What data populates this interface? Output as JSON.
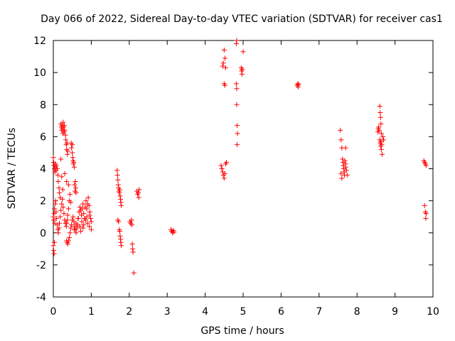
{
  "chart_data": {
    "type": "scatter",
    "title": "Day 066 of 2022, Sidereal Day-to-day VTEC variation (SDTVAR) for receiver cas1",
    "xlabel": "GPS time / hours",
    "ylabel": "SDTVAR / TECUs",
    "xlim": [
      0,
      10
    ],
    "ylim": [
      -4,
      12
    ],
    "xticks": [
      "0",
      "1",
      "2",
      "3",
      "4",
      "5",
      "6",
      "7",
      "8",
      "9",
      "10"
    ],
    "yticks": [
      "-4",
      "-2",
      "0",
      "2",
      "4",
      "6",
      "8",
      "10",
      "12"
    ],
    "marker": "+",
    "color": "#ff0000",
    "series": [
      {
        "name": "SDTVAR",
        "points": [
          [
            0.0,
            4.7
          ],
          [
            0.01,
            4.4
          ],
          [
            0.02,
            4.2
          ],
          [
            0.03,
            4.0
          ],
          [
            0.04,
            3.8
          ],
          [
            0.05,
            4.3
          ],
          [
            0.06,
            4.1
          ],
          [
            0.07,
            3.9
          ],
          [
            0.08,
            4.2
          ],
          [
            0.1,
            4.0
          ],
          [
            0.12,
            3.6
          ],
          [
            0.13,
            3.2
          ],
          [
            0.15,
            2.8
          ],
          [
            0.16,
            2.5
          ],
          [
            0.18,
            2.2
          ],
          [
            0.2,
            4.6
          ],
          [
            0.22,
            3.5
          ],
          [
            0.25,
            2.7
          ],
          [
            0.3,
            3.7
          ],
          [
            0.35,
            3.2
          ],
          [
            0.4,
            3.0
          ],
          [
            0.0,
            1.0
          ],
          [
            0.01,
            0.8
          ],
          [
            0.02,
            1.2
          ],
          [
            0.03,
            1.5
          ],
          [
            0.04,
            0.6
          ],
          [
            0.05,
            1.8
          ],
          [
            0.06,
            2.0
          ],
          [
            0.07,
            1.3
          ],
          [
            0.08,
            0.9
          ],
          [
            0.1,
            0.5
          ],
          [
            0.12,
            0.2
          ],
          [
            0.13,
            0.0
          ],
          [
            0.15,
            0.3
          ],
          [
            0.16,
            0.6
          ],
          [
            0.18,
            1.0
          ],
          [
            0.2,
            1.4
          ],
          [
            0.22,
            1.8
          ],
          [
            0.24,
            2.1
          ],
          [
            0.26,
            1.6
          ],
          [
            0.28,
            1.2
          ],
          [
            0.3,
            0.8
          ],
          [
            0.32,
            0.6
          ],
          [
            0.34,
            0.4
          ],
          [
            0.35,
            0.6
          ],
          [
            0.37,
            0.8
          ],
          [
            0.38,
            1.1
          ],
          [
            0.4,
            1.5
          ],
          [
            0.42,
            2.0
          ],
          [
            0.44,
            2.4
          ],
          [
            0.46,
            1.9
          ],
          [
            0.0,
            -0.8
          ],
          [
            0.01,
            -1.1
          ],
          [
            0.02,
            -1.3
          ],
          [
            0.03,
            -0.6
          ],
          [
            0.2,
            6.8
          ],
          [
            0.21,
            6.6
          ],
          [
            0.22,
            6.4
          ],
          [
            0.23,
            6.7
          ],
          [
            0.24,
            6.5
          ],
          [
            0.25,
            6.2
          ],
          [
            0.26,
            6.9
          ],
          [
            0.27,
            6.6
          ],
          [
            0.28,
            6.3
          ],
          [
            0.29,
            6.7
          ],
          [
            0.3,
            6.4
          ],
          [
            0.32,
            6.1
          ],
          [
            0.33,
            5.8
          ],
          [
            0.34,
            5.5
          ],
          [
            0.35,
            5.2
          ],
          [
            0.36,
            5.6
          ],
          [
            0.37,
            4.9
          ],
          [
            0.38,
            5.1
          ],
          [
            0.47,
            5.6
          ],
          [
            0.48,
            5.3
          ],
          [
            0.5,
            5.5
          ],
          [
            0.5,
            5.0
          ],
          [
            0.51,
            4.7
          ],
          [
            0.52,
            4.5
          ],
          [
            0.53,
            4.3
          ],
          [
            0.54,
            4.4
          ],
          [
            0.55,
            4.1
          ],
          [
            0.56,
            3.0
          ],
          [
            0.57,
            2.6
          ],
          [
            0.58,
            3.2
          ],
          [
            0.59,
            2.8
          ],
          [
            0.6,
            2.5
          ],
          [
            0.35,
            -0.5
          ],
          [
            0.37,
            -0.6
          ],
          [
            0.38,
            -0.7
          ],
          [
            0.4,
            -0.5
          ],
          [
            0.42,
            -0.3
          ],
          [
            0.44,
            0.0
          ],
          [
            0.46,
            0.3
          ],
          [
            0.48,
            0.5
          ],
          [
            0.5,
            0.8
          ],
          [
            0.52,
            1.0
          ],
          [
            0.54,
            0.7
          ],
          [
            0.56,
            0.4
          ],
          [
            0.58,
            0.2
          ],
          [
            0.6,
            0.0
          ],
          [
            0.62,
            0.3
          ],
          [
            0.64,
            0.5
          ],
          [
            0.66,
            0.9
          ],
          [
            0.68,
            1.3
          ],
          [
            0.7,
            1.6
          ],
          [
            0.72,
            1.4
          ],
          [
            0.74,
            1.1
          ],
          [
            0.76,
            1.5
          ],
          [
            0.78,
            1.8
          ],
          [
            0.8,
            1.2
          ],
          [
            0.82,
            0.9
          ],
          [
            0.84,
            1.6
          ],
          [
            0.86,
            2.0
          ],
          [
            0.88,
            1.5
          ],
          [
            0.9,
            1.8
          ],
          [
            0.92,
            2.2
          ],
          [
            0.94,
            1.7
          ],
          [
            0.96,
            1.3
          ],
          [
            0.98,
            0.9
          ],
          [
            0.55,
            0.2
          ],
          [
            0.6,
            0.6
          ],
          [
            0.65,
            0.9
          ],
          [
            0.7,
            0.4
          ],
          [
            0.75,
            0.7
          ],
          [
            0.8,
            0.5
          ],
          [
            0.85,
            0.8
          ],
          [
            0.9,
            0.6
          ],
          [
            0.95,
            0.4
          ],
          [
            1.0,
            0.2
          ],
          [
            0.72,
            0.1
          ],
          [
            0.78,
            0.3
          ],
          [
            0.88,
            1.0
          ],
          [
            0.96,
            1.1
          ],
          [
            1.0,
            0.7
          ],
          [
            1.68,
            3.9
          ],
          [
            1.69,
            3.6
          ],
          [
            1.7,
            3.3
          ],
          [
            1.71,
            3.0
          ],
          [
            1.72,
            2.8
          ],
          [
            1.73,
            2.6
          ],
          [
            1.74,
            2.5
          ],
          [
            1.75,
            2.7
          ],
          [
            1.76,
            2.3
          ],
          [
            1.77,
            2.1
          ],
          [
            1.78,
            1.9
          ],
          [
            1.79,
            1.7
          ],
          [
            1.7,
            0.8
          ],
          [
            1.72,
            0.7
          ],
          [
            1.74,
            0.2
          ],
          [
            1.75,
            0.1
          ],
          [
            1.76,
            -0.2
          ],
          [
            1.77,
            -0.4
          ],
          [
            1.78,
            -0.6
          ],
          [
            1.79,
            -0.8
          ],
          [
            2.02,
            0.7
          ],
          [
            2.04,
            0.6
          ],
          [
            2.06,
            0.8
          ],
          [
            2.07,
            0.5
          ],
          [
            2.08,
            -0.7
          ],
          [
            2.09,
            -1.0
          ],
          [
            2.1,
            -1.2
          ],
          [
            2.12,
            -2.5
          ],
          [
            2.2,
            2.6
          ],
          [
            2.22,
            2.4
          ],
          [
            2.24,
            2.5
          ],
          [
            2.25,
            2.2
          ],
          [
            2.26,
            2.7
          ],
          [
            3.1,
            0.2
          ],
          [
            3.12,
            0.1
          ],
          [
            3.14,
            0.0
          ],
          [
            3.16,
            0.15
          ],
          [
            3.18,
            0.05
          ],
          [
            4.42,
            4.2
          ],
          [
            4.44,
            4.0
          ],
          [
            4.46,
            3.8
          ],
          [
            4.48,
            3.6
          ],
          [
            4.5,
            3.4
          ],
          [
            4.52,
            3.7
          ],
          [
            4.54,
            4.3
          ],
          [
            4.56,
            4.4
          ],
          [
            4.46,
            10.4
          ],
          [
            4.48,
            10.6
          ],
          [
            4.5,
            11.4
          ],
          [
            4.52,
            10.9
          ],
          [
            4.54,
            10.3
          ],
          [
            4.5,
            9.3
          ],
          [
            4.52,
            9.2
          ],
          [
            4.82,
            11.8
          ],
          [
            4.83,
            12.0
          ],
          [
            4.82,
            9.3
          ],
          [
            4.83,
            9.0
          ],
          [
            4.83,
            8.0
          ],
          [
            4.84,
            6.7
          ],
          [
            4.85,
            6.2
          ],
          [
            4.84,
            5.5
          ],
          [
            4.95,
            10.3
          ],
          [
            4.96,
            10.1
          ],
          [
            4.97,
            9.9
          ],
          [
            4.98,
            10.2
          ],
          [
            5.0,
            11.3
          ],
          [
            6.42,
            9.2
          ],
          [
            6.44,
            9.3
          ],
          [
            6.45,
            9.1
          ],
          [
            6.46,
            9.25
          ],
          [
            7.56,
            6.4
          ],
          [
            7.58,
            5.8
          ],
          [
            7.6,
            5.3
          ],
          [
            7.62,
            4.6
          ],
          [
            7.63,
            4.4
          ],
          [
            7.64,
            4.2
          ],
          [
            7.65,
            4.0
          ],
          [
            7.66,
            3.8
          ],
          [
            7.67,
            3.6
          ],
          [
            7.6,
            3.4
          ],
          [
            7.58,
            3.7
          ],
          [
            7.68,
            4.5
          ],
          [
            7.7,
            4.3
          ],
          [
            7.72,
            3.9
          ],
          [
            7.74,
            3.6
          ],
          [
            7.7,
            4.1
          ],
          [
            7.7,
            5.3
          ],
          [
            8.55,
            6.3
          ],
          [
            8.56,
            6.5
          ],
          [
            8.57,
            6.6
          ],
          [
            8.58,
            6.4
          ],
          [
            8.6,
            7.9
          ],
          [
            8.61,
            7.5
          ],
          [
            8.62,
            7.2
          ],
          [
            8.63,
            6.8
          ],
          [
            8.64,
            6.2
          ],
          [
            8.6,
            5.8
          ],
          [
            8.61,
            5.6
          ],
          [
            8.62,
            5.4
          ],
          [
            8.63,
            5.7
          ],
          [
            8.64,
            5.2
          ],
          [
            8.65,
            5.5
          ],
          [
            8.66,
            4.9
          ],
          [
            8.68,
            6.0
          ],
          [
            8.7,
            5.8
          ],
          [
            9.76,
            4.5
          ],
          [
            9.78,
            4.4
          ],
          [
            9.8,
            4.3
          ],
          [
            9.82,
            4.2
          ],
          [
            9.78,
            1.7
          ],
          [
            9.8,
            1.3
          ],
          [
            9.82,
            1.2
          ],
          [
            9.81,
            0.9
          ]
        ]
      }
    ]
  }
}
